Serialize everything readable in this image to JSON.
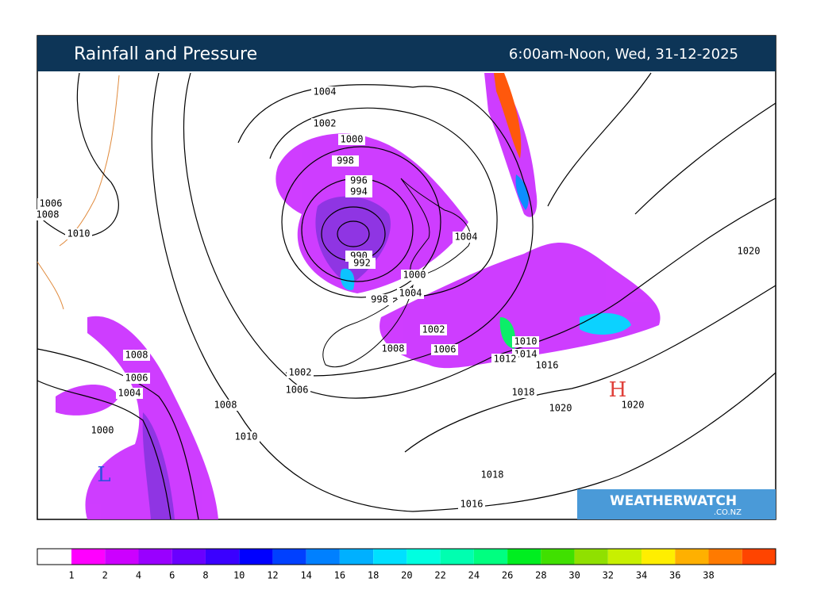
{
  "header": {
    "title": "Rainfall and Pressure",
    "time": "6:00am-Noon, Wed, 31-12-2025"
  },
  "isobar_labels": [
    "1004",
    "1002",
    "1000",
    "998",
    "996",
    "994",
    "990",
    "992",
    "1004",
    "1000",
    "1004",
    "998",
    "1002",
    "1006",
    "1008",
    "1010",
    "1014",
    "1012",
    "1016",
    "1018",
    "1020",
    "1020",
    "1020",
    "1018",
    "1016",
    "1008",
    "1006",
    "1004",
    "1000",
    "1008",
    "1010",
    "1002",
    "1006",
    "1006",
    "1008",
    "1010"
  ],
  "pressure_centres": [
    {
      "label": "H",
      "color": "#e0403a"
    },
    {
      "label": "L",
      "color": "#3050e0"
    }
  ],
  "logo": {
    "part1": "WEATHER",
    "part2": "WATCH",
    "domain": ".CO.NZ"
  },
  "scale": {
    "colors": [
      "#ffffff",
      "#ff00ff",
      "#cc00ff",
      "#9900ff",
      "#6a00ff",
      "#3a00ff",
      "#0000ff",
      "#0040ff",
      "#0080ff",
      "#00b0ff",
      "#00e0ff",
      "#00ffe0",
      "#00ffb0",
      "#00ff80",
      "#00ee20",
      "#40e000",
      "#90e000",
      "#c8f000",
      "#ffee00",
      "#ffb000",
      "#ff7a00",
      "#ff4400"
    ],
    "labels": [
      1,
      2,
      4,
      6,
      8,
      10,
      12,
      14,
      16,
      18,
      20,
      22,
      24,
      26,
      28,
      30,
      32,
      34,
      36,
      38
    ]
  }
}
